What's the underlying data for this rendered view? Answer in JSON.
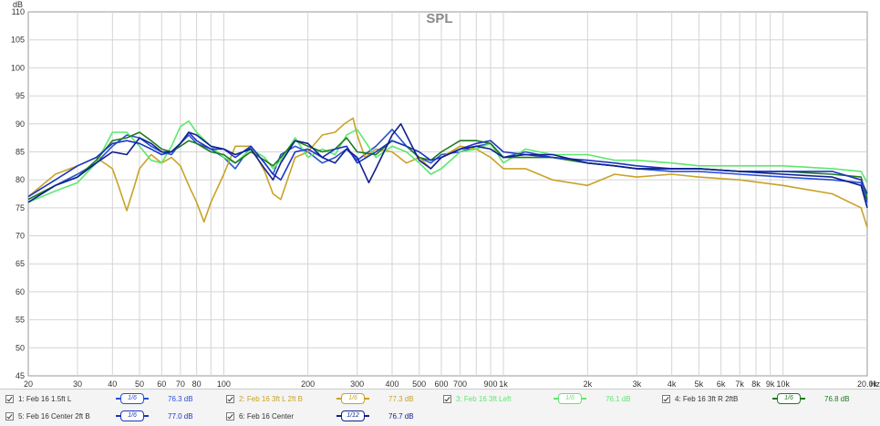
{
  "chart_data": {
    "type": "line",
    "title": "SPL",
    "yunit": "dB",
    "xunit": "Hz",
    "xscale": "log",
    "xlim": [
      20,
      20000
    ],
    "ylim": [
      45,
      110
    ],
    "grid": true,
    "y_ticks": [
      "45",
      "50",
      "55",
      "60",
      "65",
      "70",
      "75",
      "80",
      "85",
      "90",
      "95",
      "100",
      "105",
      "110"
    ],
    "x_ticks": [
      {
        "v": 20,
        "label": "20"
      },
      {
        "v": 30,
        "label": "30"
      },
      {
        "v": 40,
        "label": "40"
      },
      {
        "v": 50,
        "label": "50"
      },
      {
        "v": 60,
        "label": "60"
      },
      {
        "v": 70,
        "label": "70"
      },
      {
        "v": 80,
        "label": "80"
      },
      {
        "v": 100,
        "label": "100"
      },
      {
        "v": 200,
        "label": "200"
      },
      {
        "v": 300,
        "label": "300"
      },
      {
        "v": 400,
        "label": "400"
      },
      {
        "v": 500,
        "label": "500"
      },
      {
        "v": 600,
        "label": "600"
      },
      {
        "v": 700,
        "label": "700"
      },
      {
        "v": 900,
        "label": "900"
      },
      {
        "v": 1000,
        "label": "1k"
      },
      {
        "v": 2000,
        "label": "2k"
      },
      {
        "v": 3000,
        "label": "3k"
      },
      {
        "v": 4000,
        "label": "4k"
      },
      {
        "v": 5000,
        "label": "5k"
      },
      {
        "v": 6000,
        "label": "6k"
      },
      {
        "v": 7000,
        "label": "7k"
      },
      {
        "v": 8000,
        "label": "8k"
      },
      {
        "v": 9000,
        "label": "9k"
      },
      {
        "v": 10000,
        "label": "10k"
      },
      {
        "v": 20000,
        "label": "20.0k"
      }
    ],
    "series": [
      {
        "name": "1: Feb 16 1.5ft L",
        "color": "#2a4fd6",
        "smoothing": "1/6",
        "level": "76.3 dB",
        "x": [
          20,
          25,
          30,
          35,
          40,
          45,
          50,
          55,
          60,
          65,
          70,
          75,
          80,
          90,
          100,
          110,
          125,
          140,
          150,
          160,
          180,
          200,
          225,
          250,
          275,
          300,
          350,
          400,
          450,
          500,
          550,
          600,
          700,
          800,
          900,
          1000,
          1200,
          1500,
          2000,
          2500,
          3000,
          4000,
          5000,
          7000,
          10000,
          15000,
          19000,
          20000
        ],
        "y": [
          76.5,
          79,
          81,
          83,
          86,
          88,
          87.5,
          86,
          85,
          84.5,
          86.5,
          88,
          86.5,
          85.5,
          84,
          82,
          86,
          83,
          81,
          84.5,
          86,
          85,
          83,
          84,
          85.5,
          83.5,
          86,
          89,
          86,
          84,
          83,
          84.5,
          85,
          86,
          86.5,
          84,
          85,
          84,
          83,
          82.5,
          82,
          81.5,
          81.5,
          81,
          80.5,
          80,
          79.5,
          76
        ]
      },
      {
        "name": "2: Feb 16 3ft L 2ft B",
        "color": "#c9a227",
        "smoothing": "1/6",
        "level": "77.3 dB",
        "x": [
          20,
          25,
          30,
          35,
          40,
          42,
          45,
          48,
          50,
          55,
          60,
          65,
          70,
          75,
          80,
          85,
          90,
          100,
          110,
          125,
          140,
          150,
          160,
          180,
          200,
          225,
          250,
          270,
          290,
          300,
          320,
          350,
          400,
          450,
          500,
          550,
          600,
          700,
          800,
          900,
          1000,
          1200,
          1500,
          2000,
          2500,
          3000,
          4000,
          5000,
          7000,
          10000,
          15000,
          19000,
          20000
        ],
        "y": [
          77,
          81,
          82.5,
          84,
          82,
          79,
          74.5,
          79,
          82,
          84.5,
          83,
          84,
          82.5,
          79,
          76,
          72.5,
          76,
          81,
          86,
          86,
          81.5,
          77.5,
          76.5,
          84,
          85,
          88,
          88.5,
          90,
          91,
          88,
          84,
          85.5,
          85,
          83,
          84,
          82,
          84,
          86,
          85.5,
          84,
          82,
          82,
          80,
          79,
          81,
          80.5,
          81,
          80.5,
          80,
          79,
          77.5,
          75,
          71.5
        ]
      },
      {
        "name": "3: Feb 16 3ft Left",
        "color": "#5de86e",
        "smoothing": "1/6",
        "level": "76.1 dB",
        "x": [
          20,
          25,
          30,
          35,
          40,
          45,
          50,
          55,
          60,
          65,
          70,
          75,
          80,
          90,
          100,
          110,
          125,
          140,
          150,
          160,
          180,
          200,
          225,
          250,
          275,
          300,
          350,
          400,
          450,
          500,
          550,
          600,
          700,
          800,
          900,
          1000,
          1200,
          1500,
          2000,
          2500,
          3000,
          4000,
          5000,
          7000,
          10000,
          15000,
          19000,
          20000
        ],
        "y": [
          76,
          78,
          79.5,
          83,
          88.5,
          88.5,
          86,
          83.5,
          83,
          86,
          89.5,
          90.5,
          88.5,
          86,
          84,
          83,
          85.5,
          84,
          82,
          83.5,
          87.5,
          84,
          85.5,
          84.5,
          88,
          89,
          84,
          86,
          85,
          83,
          81,
          82,
          85,
          85.5,
          86.5,
          83,
          85.5,
          84.5,
          84.5,
          83.5,
          83.5,
          83,
          82.5,
          82.5,
          82.5,
          82,
          81.5,
          79.5
        ]
      },
      {
        "name": "4: Feb 16 3ft R 2ftB",
        "color": "#1f7a1f",
        "smoothing": "1/6",
        "level": "76.8 dB",
        "x": [
          20,
          25,
          30,
          35,
          40,
          45,
          50,
          55,
          60,
          65,
          70,
          75,
          80,
          90,
          100,
          110,
          125,
          140,
          150,
          160,
          180,
          200,
          225,
          250,
          275,
          300,
          350,
          400,
          450,
          500,
          550,
          600,
          700,
          800,
          900,
          1000,
          1200,
          1500,
          2000,
          2500,
          3000,
          4000,
          5000,
          7000,
          10000,
          15000,
          19000,
          20000
        ],
        "y": [
          76.5,
          79,
          80.5,
          83.5,
          87,
          87.5,
          88.5,
          87,
          85.5,
          85,
          86,
          87,
          86.5,
          85,
          84.5,
          83,
          85,
          83.5,
          82.5,
          84,
          87,
          86,
          85,
          85.5,
          87.5,
          85,
          84.5,
          87,
          86,
          84,
          83.5,
          85,
          87,
          87,
          86.5,
          84,
          84,
          84,
          83,
          82.5,
          82,
          82,
          82,
          81.5,
          81.5,
          81,
          80.5,
          76.5
        ]
      },
      {
        "name": "5: Feb 16 Center 2ft B",
        "color": "#1c35c4",
        "smoothing": "1/6",
        "level": "77.0 dB",
        "x": [
          20,
          25,
          30,
          35,
          40,
          45,
          50,
          55,
          60,
          65,
          70,
          75,
          80,
          90,
          100,
          110,
          125,
          140,
          150,
          160,
          180,
          200,
          225,
          250,
          275,
          300,
          350,
          400,
          450,
          500,
          550,
          600,
          700,
          800,
          900,
          1000,
          1200,
          1500,
          2000,
          2500,
          3000,
          4000,
          5000,
          7000,
          10000,
          15000,
          19000,
          20000
        ],
        "y": [
          77,
          80,
          82.5,
          84,
          86.5,
          87,
          86.5,
          85.5,
          84.5,
          85,
          86.5,
          88.5,
          87,
          85.5,
          85.5,
          84,
          86,
          83,
          81,
          80,
          85,
          85.5,
          84,
          85.5,
          86,
          83,
          85,
          87,
          86,
          85,
          83.5,
          84,
          85.5,
          86.5,
          87,
          85,
          84.5,
          84,
          83.5,
          83,
          82.5,
          82,
          82,
          81.5,
          81.5,
          81.5,
          80,
          77.5
        ]
      },
      {
        "name": "6: Feb 16 Center",
        "color": "#0f1f8f",
        "smoothing": "1/12",
        "level": "76.7 dB",
        "x": [
          20,
          25,
          30,
          35,
          40,
          45,
          50,
          55,
          60,
          65,
          70,
          75,
          80,
          90,
          100,
          110,
          125,
          140,
          150,
          160,
          180,
          200,
          225,
          250,
          275,
          300,
          330,
          350,
          400,
          430,
          450,
          500,
          550,
          600,
          700,
          800,
          900,
          1000,
          1200,
          1500,
          2000,
          2500,
          3000,
          4000,
          5000,
          7000,
          10000,
          15000,
          19000,
          20000
        ],
        "y": [
          76,
          79,
          80.5,
          83,
          85,
          84.5,
          87.5,
          86.5,
          85,
          85,
          86.5,
          88.5,
          88,
          86,
          85.5,
          84.5,
          85.5,
          82,
          80,
          83,
          87,
          86.5,
          84,
          83,
          85.5,
          84,
          79.5,
          82,
          88,
          90,
          88,
          83.5,
          82,
          84,
          85.5,
          86,
          85.5,
          84,
          84.5,
          84.5,
          83,
          82.5,
          82,
          82,
          82,
          81.5,
          81,
          80.5,
          79,
          75
        ]
      }
    ]
  }
}
